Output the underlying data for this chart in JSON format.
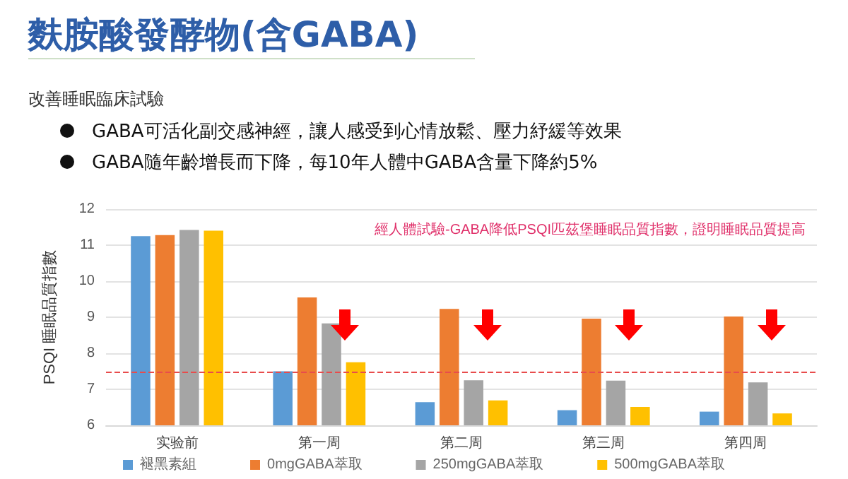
{
  "chart_data": {
    "type": "bar",
    "title": "麩胺酸發酵物(含GABA)",
    "subtitle": "改善睡眠臨床試驗",
    "annotations": [
      "GABA可活化副交感神經，讓人感受到心情放鬆、壓力紓緩等效果",
      "GABA隨年齡增長而下降，每10年人體中GABA含量下降約5%",
      "經人體試驗-GABA降低PSQI匹茲堡睡眠品質指數，證明睡眠品質提高"
    ],
    "ylabel": "PSQI 睡眠品質指數",
    "categories": [
      "实验前",
      "第一周",
      "第二周",
      "第三周",
      "第四周"
    ],
    "series": [
      {
        "name": "褪黑素組",
        "color": "#5b9bd5",
        "values": [
          11.25,
          7.5,
          6.64,
          6.42,
          6.38
        ]
      },
      {
        "name": "0mgGABA萃取",
        "color": "#ed7d31",
        "values": [
          11.28,
          9.55,
          9.23,
          8.96,
          9.02
        ]
      },
      {
        "name": "250mgGABA萃取",
        "color": "#a5a5a5",
        "values": [
          11.42,
          8.83,
          7.25,
          7.24,
          7.19
        ]
      },
      {
        "name": "500mgGABA萃取",
        "color": "#ffc000",
        "values": [
          11.4,
          7.75,
          6.69,
          6.51,
          6.33
        ]
      }
    ],
    "ylim": [
      6,
      12
    ],
    "yticks": [
      6,
      7,
      8,
      9,
      10,
      11,
      12
    ],
    "grid": "y",
    "legend": "bottom",
    "ref_lines": [
      {
        "axis": "y",
        "value": 7.5,
        "color": "#e84c4c",
        "line_style": "dashed"
      }
    ]
  }
}
